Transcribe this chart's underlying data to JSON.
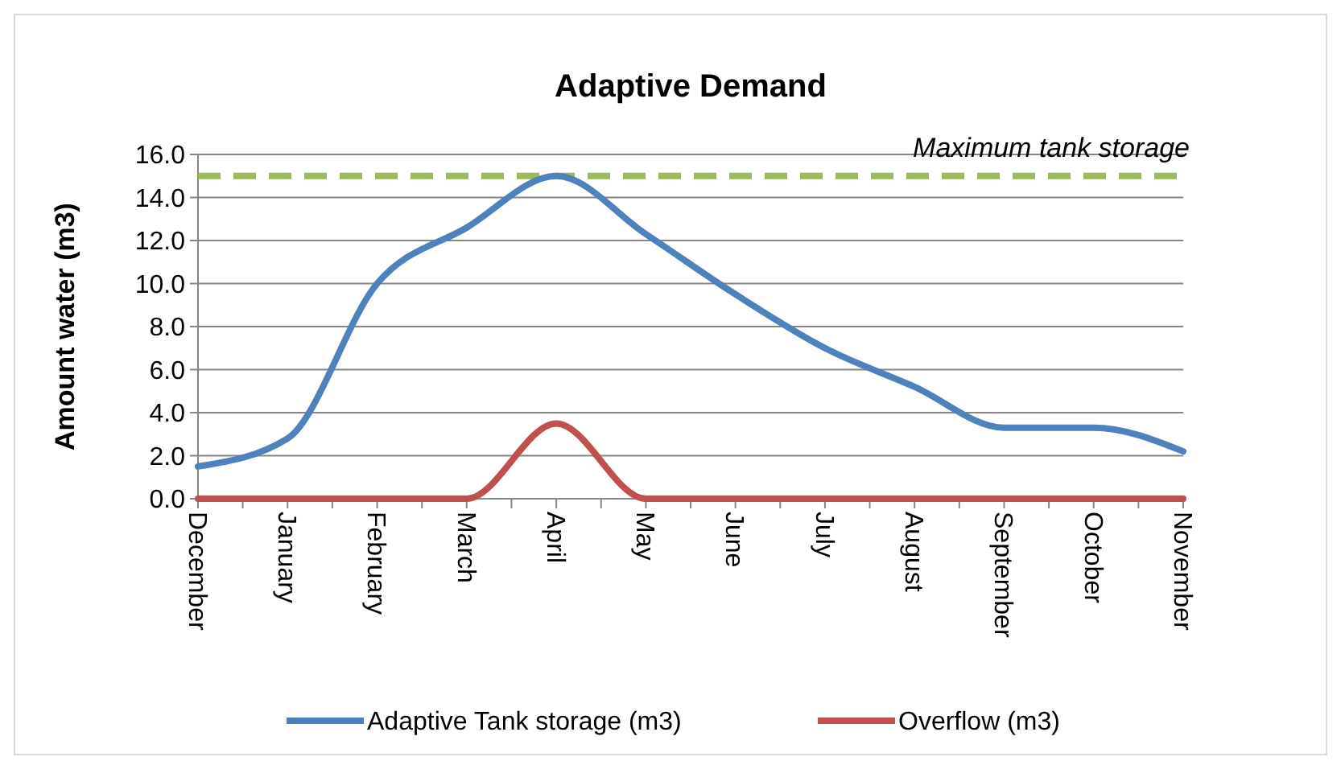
{
  "chart_data": {
    "type": "line",
    "title": "Adaptive Demand",
    "ylabel": "Amount water (m3)",
    "categories": [
      "December",
      "January",
      "February",
      "March",
      "April",
      "May",
      "June",
      "July",
      "August",
      "September",
      "October",
      "November"
    ],
    "series": [
      {
        "name": "Adaptive Tank storage (m3)",
        "color": "#4f81bd",
        "values": [
          1.5,
          2.8,
          10.0,
          12.6,
          15.0,
          12.3,
          9.5,
          7.0,
          5.2,
          3.3,
          3.3,
          2.2
        ]
      },
      {
        "name": "Overflow (m3)",
        "color": "#c0504d",
        "values": [
          0,
          0,
          0,
          0,
          3.5,
          0,
          0,
          0,
          0,
          0,
          0,
          0
        ]
      }
    ],
    "ylim": [
      0,
      16
    ],
    "yticks": [
      {
        "value": 0,
        "label": "0.0"
      },
      {
        "value": 2,
        "label": "2.0"
      },
      {
        "value": 4,
        "label": "4.0"
      },
      {
        "value": 6,
        "label": "6.0"
      },
      {
        "value": 8,
        "label": "8.0"
      },
      {
        "value": 10,
        "label": "10.0"
      },
      {
        "value": 12,
        "label": "12.0"
      },
      {
        "value": 14,
        "label": "14.0"
      },
      {
        "value": 16,
        "label": "16.0"
      }
    ],
    "grid": "y",
    "legend": "bottom",
    "marker": "none",
    "line_style": "solid",
    "ref_lines": [
      {
        "axis": "y",
        "value": 15,
        "label": "Maximum tank storage",
        "color": "#9bbb59",
        "line_style": "dashed"
      }
    ]
  }
}
